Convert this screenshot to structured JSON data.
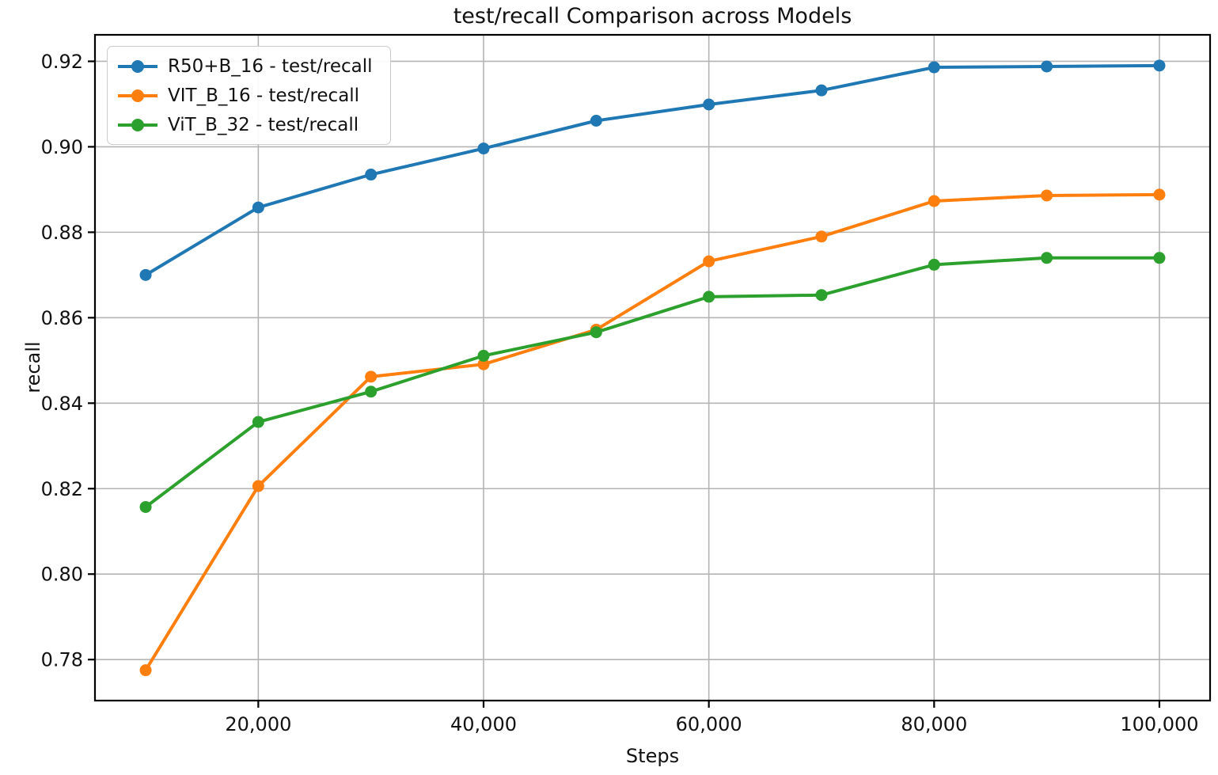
{
  "chart_data": {
    "type": "line",
    "title": "test/recall Comparison across Models",
    "xlabel": "Steps",
    "ylabel": "recall",
    "x": [
      10000,
      20000,
      30000,
      40000,
      50000,
      60000,
      70000,
      80000,
      90000,
      100000
    ],
    "series": [
      {
        "name": "R50+B_16 - test/recall",
        "color": "#1f77b4",
        "values": [
          0.87,
          0.8858,
          0.8935,
          0.8996,
          0.9061,
          0.9099,
          0.9132,
          0.9186,
          0.9188,
          0.919
        ]
      },
      {
        "name": "VIT_B_16 - test/recall",
        "color": "#ff7f0e",
        "values": [
          0.7775,
          0.8206,
          0.8462,
          0.8491,
          0.8572,
          0.8732,
          0.879,
          0.8873,
          0.8886,
          0.8888
        ]
      },
      {
        "name": "ViT_B_32 - test/recall",
        "color": "#2ca02c",
        "values": [
          0.8157,
          0.8356,
          0.8427,
          0.8511,
          0.8566,
          0.8649,
          0.8653,
          0.8724,
          0.874,
          0.874
        ]
      }
    ],
    "xlim": [
      5500,
      104500
    ],
    "ylim": [
      0.7704,
      0.9262
    ],
    "xticks": [
      20000,
      40000,
      60000,
      80000,
      100000
    ],
    "xtick_labels": [
      "20,000",
      "40,000",
      "60,000",
      "80,000",
      "100,000"
    ],
    "yticks": [
      0.78,
      0.8,
      0.82,
      0.84,
      0.86,
      0.88,
      0.9,
      0.92
    ],
    "ytick_labels": [
      "0.78",
      "0.80",
      "0.82",
      "0.84",
      "0.86",
      "0.88",
      "0.90",
      "0.92"
    ],
    "grid": true,
    "legend_position": "upper left",
    "colors": {
      "grid": "#b4b4b4",
      "spine": "#000000",
      "text": "#111111",
      "background": "#ffffff"
    }
  }
}
